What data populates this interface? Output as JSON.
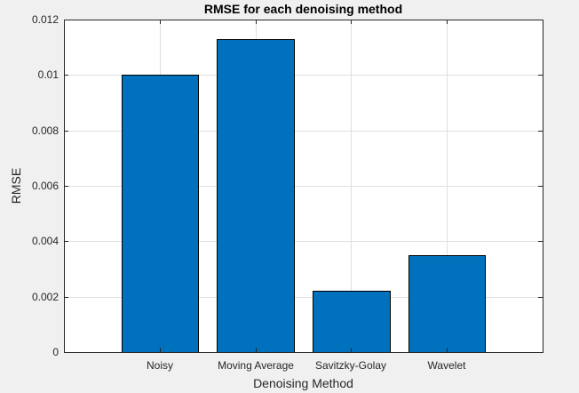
{
  "chart_data": {
    "type": "bar",
    "title": "RMSE for each denoising method",
    "xlabel": "Denoising Method",
    "ylabel": "RMSE",
    "categories": [
      "Noisy",
      "Moving Average",
      "Savitzky-Golay",
      "Wavelet"
    ],
    "values": [
      0.01,
      0.0113,
      0.00222,
      0.0035
    ],
    "ylim": [
      0,
      0.012
    ],
    "yticks": [
      0,
      0.002,
      0.004,
      0.006,
      0.008,
      0.01,
      0.012
    ],
    "ytick_labels": [
      "0",
      "0.002",
      "0.004",
      "0.006",
      "0.008",
      "0.01",
      "0.012"
    ],
    "grid": true,
    "colors": {
      "bar_fill": "#0072BD",
      "bar_edge": "#000000",
      "plot_background": "#ffffff",
      "figure_background": "#f0f0f0",
      "grid": "#dfdfdf",
      "axis": "#262626"
    }
  }
}
